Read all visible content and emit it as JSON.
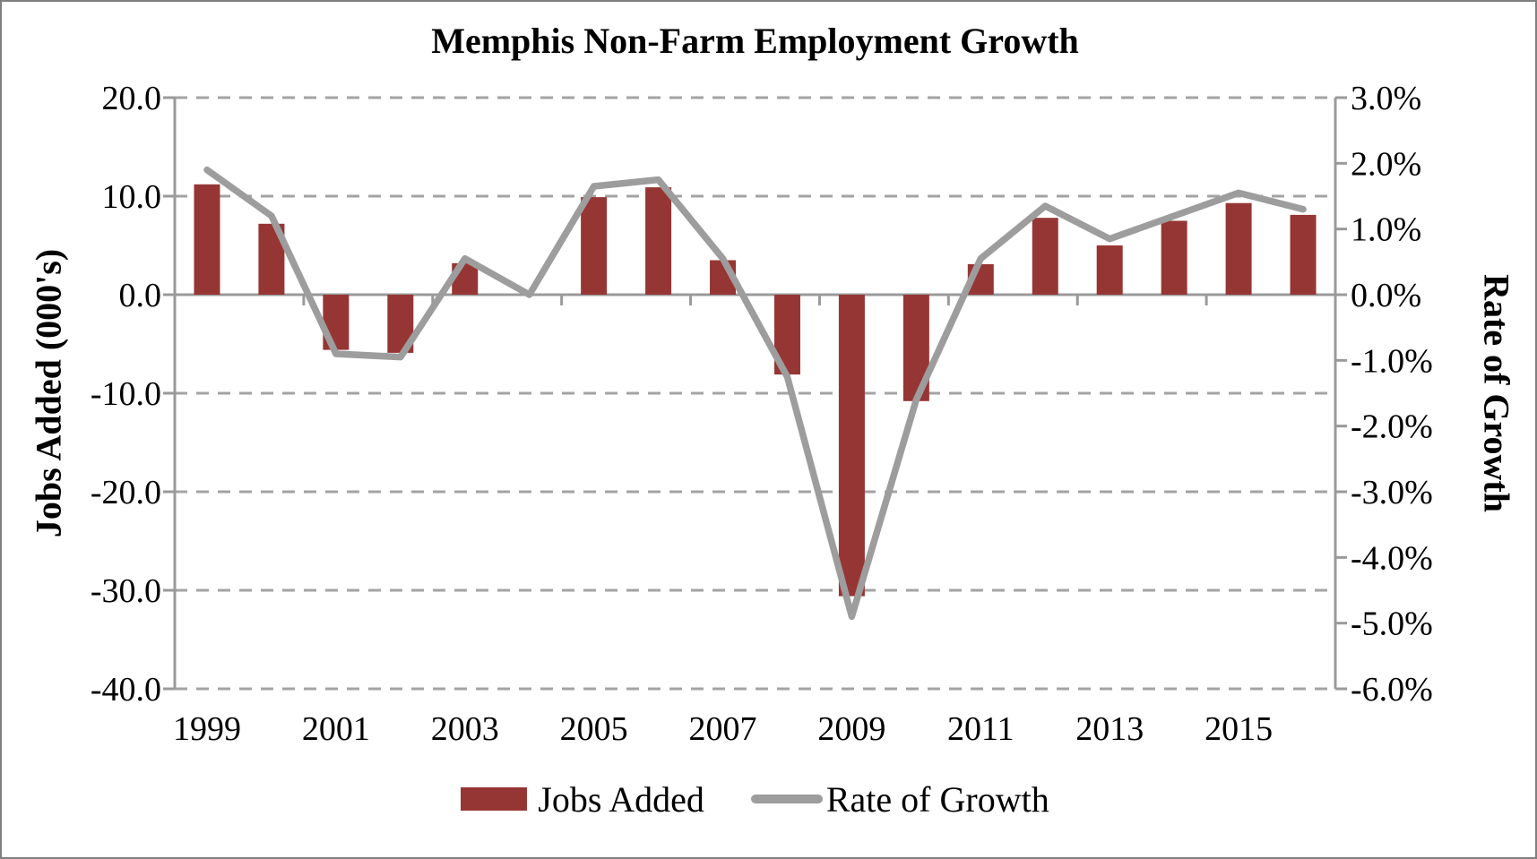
{
  "title": "Memphis Non-Farm Employment Growth",
  "axes": {
    "left": {
      "title": "Jobs Added (000's)",
      "tick_labels": [
        "20.0",
        "10.0",
        "0.0",
        "-10.0",
        "-20.0",
        "-30.0",
        "-40.0"
      ],
      "tick_values": [
        20,
        10,
        0,
        -10,
        -20,
        -30,
        -40
      ]
    },
    "right": {
      "title": "Rate of Growth",
      "tick_labels": [
        "3.0%",
        "2.0%",
        "1.0%",
        "0.0%",
        "-1.0%",
        "-2.0%",
        "-3.0%",
        "-4.0%",
        "-5.0%",
        "-6.0%"
      ],
      "tick_values": [
        3,
        2,
        1,
        0,
        -1,
        -2,
        -3,
        -4,
        -5,
        -6
      ]
    },
    "x": {
      "labels": [
        "1999",
        "2001",
        "2003",
        "2005",
        "2007",
        "2009",
        "2011",
        "2013",
        "2015"
      ],
      "label_category_indices": [
        0,
        2,
        4,
        6,
        8,
        10,
        12,
        14,
        16
      ]
    }
  },
  "legend": {
    "items": [
      {
        "label": "Jobs Added",
        "swatch": "bar",
        "color": "#963634"
      },
      {
        "label": "Rate of Growth",
        "swatch": "line",
        "color": "#9d9d9d"
      }
    ]
  },
  "colors": {
    "bar": "#963634",
    "line": "#9d9d9d",
    "grid": "#a3a3a3",
    "axis": "#9a9a9a",
    "text": "#000000",
    "border": "#7f7f7f",
    "background": "#ffffff"
  },
  "chart_data": {
    "type": "bar",
    "title": "Memphis Non-Farm Employment Growth",
    "categories": [
      1999,
      2000,
      2001,
      2002,
      2003,
      2004,
      2005,
      2006,
      2007,
      2008,
      2009,
      2010,
      2011,
      2012,
      2013,
      2014,
      2015,
      2016
    ],
    "series": [
      {
        "name": "Jobs Added",
        "type": "bar",
        "axis": "left",
        "values": [
          11.2,
          7.2,
          -5.6,
          -5.9,
          3.2,
          0.0,
          9.9,
          10.9,
          3.5,
          -8.1,
          -30.6,
          -10.8,
          3.1,
          7.8,
          5.0,
          7.5,
          9.3,
          8.1
        ]
      },
      {
        "name": "Rate of Growth",
        "type": "line",
        "axis": "right",
        "values": [
          1.9,
          1.2,
          -0.9,
          -0.95,
          0.55,
          0.0,
          1.65,
          1.75,
          0.55,
          -1.25,
          -4.9,
          -1.6,
          0.55,
          1.35,
          0.85,
          1.2,
          1.55,
          1.3
        ]
      }
    ],
    "xlabel": "",
    "ylabel_left": "Jobs Added (000's)",
    "ylabel_right": "Rate of Growth",
    "ylim_left": [
      -40,
      20
    ],
    "ylim_right": [
      -6,
      3
    ],
    "grid": true,
    "gridline_style": "dashed",
    "legend_position": "bottom"
  }
}
